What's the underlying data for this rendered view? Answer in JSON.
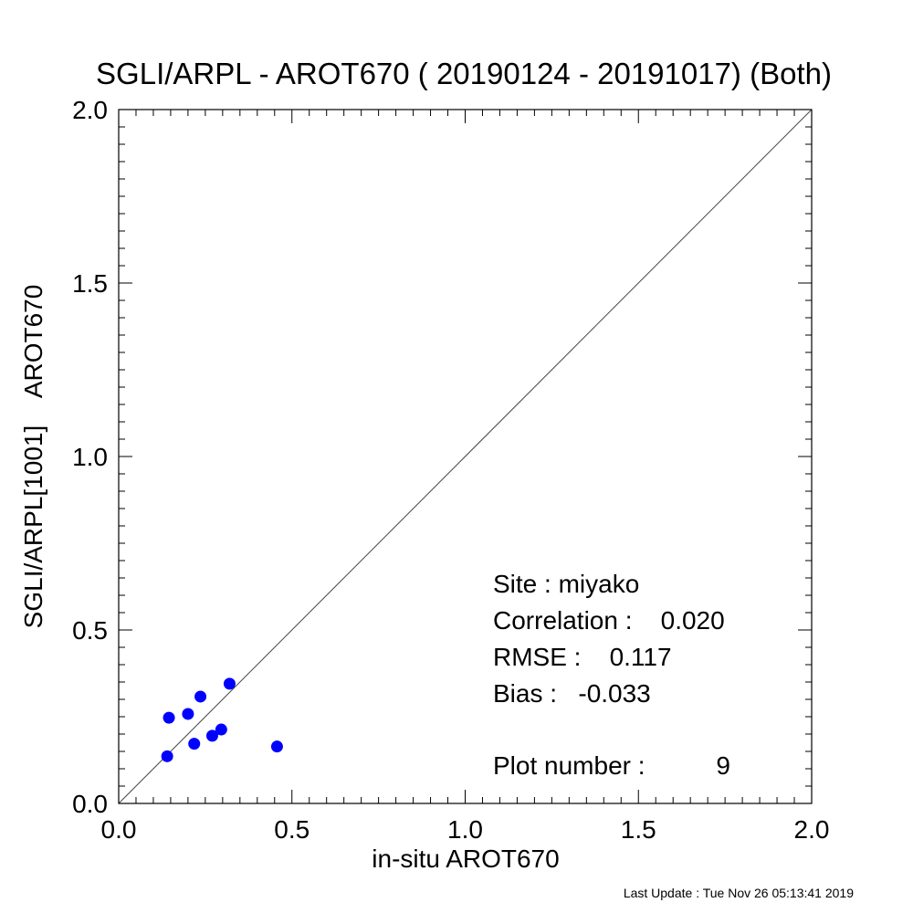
{
  "chart_data": {
    "type": "scatter",
    "title": "SGLI/ARPL - AROT670 ( 20190124 - 20191017) (Both)",
    "xlabel": "in-situ AROT670",
    "ylabel": "SGLI/ARPL[1001]    AROT670",
    "xlim": [
      0.0,
      2.0
    ],
    "ylim": [
      0.0,
      2.0
    ],
    "xticks": [
      "0.0",
      "0.5",
      "1.0",
      "1.5",
      "2.0"
    ],
    "yticks": [
      "0.0",
      "0.5",
      "1.0",
      "1.5",
      "2.0"
    ],
    "grid": false,
    "reference_line": "1:1",
    "marker_color": "#0000ff",
    "points": [
      {
        "x": 0.14,
        "y": 0.136
      },
      {
        "x": 0.145,
        "y": 0.247
      },
      {
        "x": 0.2,
        "y": 0.258
      },
      {
        "x": 0.218,
        "y": 0.172
      },
      {
        "x": 0.236,
        "y": 0.308
      },
      {
        "x": 0.27,
        "y": 0.195
      },
      {
        "x": 0.296,
        "y": 0.213
      },
      {
        "x": 0.32,
        "y": 0.345
      },
      {
        "x": 0.457,
        "y": 0.164
      }
    ],
    "annotations": {
      "site": "Site : miyako",
      "correlation": "Correlation :    0.020",
      "rmse": "RMSE :    0.117",
      "bias": "Bias :   -0.033",
      "plot_number": "Plot number :          9"
    }
  },
  "footer": {
    "last_update": "Last Update : Tue Nov 26 05:13:41 2019"
  }
}
